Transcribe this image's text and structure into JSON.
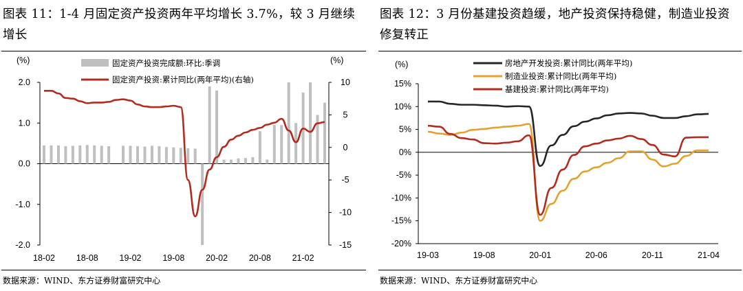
{
  "left": {
    "title": "图表 11：1-4 月固定资产投资两年平均增长 3.7%，较 3 月继续增长",
    "source": "数据来源：WIND、东方证券财富研究中心",
    "chart_data": {
      "type": "bar+line",
      "y_left": {
        "unit": "(%)",
        "range": [
          -2.0,
          2.0
        ],
        "ticks": [
          "2.0",
          "1.0",
          "0.0",
          "-1.0",
          "-2.0"
        ]
      },
      "y_right": {
        "unit": "(%)",
        "range": [
          -15,
          10
        ],
        "ticks": [
          "10",
          "5",
          "0",
          "-5",
          "-10",
          "-15"
        ]
      },
      "x_ticks": [
        "18-02",
        "18-08",
        "19-02",
        "19-08",
        "20-02",
        "20-08",
        "21-02"
      ],
      "legend": [
        "固定资产投资完成额:环比:季调",
        "固定资产投资:累计同比(两年平均)(右轴)"
      ],
      "bar_series": {
        "name": "固定资产投资完成额:环比:季调",
        "color": "#bfbfbf",
        "x": [
          0,
          1,
          2,
          3,
          4,
          5,
          6,
          7,
          8,
          9,
          10,
          11,
          12,
          13,
          14,
          15,
          16,
          17,
          18,
          19,
          20,
          21,
          22,
          23,
          24,
          25,
          26,
          27,
          28,
          29,
          30,
          31,
          32,
          33,
          34,
          35,
          36,
          37,
          38,
          39
        ],
        "values": [
          0.45,
          0.45,
          0.45,
          0.43,
          0.44,
          0.45,
          0.46,
          0.45,
          0.44,
          0.43,
          null,
          0.44,
          0.44,
          0.43,
          0.42,
          0.44,
          0.43,
          0.41,
          0.4,
          0.39,
          0.38,
          0.37,
          -2.0,
          1.9,
          1.8,
          0.1,
          0.1,
          0.13,
          0.14,
          0.16,
          0.8,
          0.1,
          0.95,
          0.95,
          2.0,
          1.0,
          1.75,
          2.0,
          1.2,
          1.5
        ]
      },
      "line_series": {
        "name": "固定资产投资:累计同比(两年平均)(右轴)",
        "color": "#b22b1e",
        "x": [
          0,
          1,
          2,
          3,
          4,
          5,
          6,
          7,
          8,
          9,
          10,
          11,
          12,
          13,
          14,
          15,
          16,
          17,
          18,
          19,
          20,
          21,
          22,
          23,
          24,
          25,
          26,
          27,
          28,
          29,
          30,
          31,
          32,
          33,
          34,
          35,
          36,
          37,
          38,
          39
        ],
        "values": [
          8.7,
          8.7,
          8.3,
          7.6,
          7.5,
          7.1,
          6.8,
          6.9,
          6.9,
          7.0,
          7.3,
          7.4,
          7.2,
          6.6,
          6.3,
          6.2,
          6.2,
          6.3,
          6.4,
          6.2,
          -5.0,
          -10.6,
          -6.5,
          -3.4,
          -1.5,
          0.1,
          1.2,
          1.8,
          2.3,
          2.7,
          3.0,
          3.5,
          3.8,
          4.4,
          2.6,
          0.8,
          2.9,
          2.4,
          3.7,
          3.9
        ]
      }
    }
  },
  "right": {
    "title": "图表 12：3 月份基建投资趋缓，地产投资保持稳健，制造业投资修复转正",
    "source": "数据来源：WIND、东方证券财富研究中心",
    "chart_data": {
      "type": "line",
      "y": {
        "unit": "(%)",
        "range": [
          -20,
          15
        ],
        "ticks": [
          "15%",
          "10%",
          "5%",
          "0%",
          "-5%",
          "-10%",
          "-15%",
          "-20%"
        ]
      },
      "x_ticks": [
        "19-03",
        "19-08",
        "20-01",
        "20-06",
        "20-11",
        "21-04"
      ],
      "series": [
        {
          "name": "房地产开发投资:累计同比(两年平均)",
          "color": "#262626",
          "x": [
            0,
            1,
            2,
            3,
            4,
            5,
            6,
            7,
            8,
            9,
            10,
            11,
            12,
            13,
            14,
            15,
            16,
            17,
            18,
            19,
            20,
            21,
            22,
            23,
            24,
            25
          ],
          "values": [
            11.1,
            11.1,
            10.6,
            10.4,
            10.4,
            10.3,
            10.2,
            10.0,
            10.1,
            10.0,
            -3.0,
            1.5,
            3.8,
            5.7,
            6.7,
            7.4,
            8.1,
            8.5,
            8.6,
            8.5,
            8.0,
            7.5,
            7.5,
            7.9,
            8.3,
            8.4
          ]
        },
        {
          "name": "制造业投资:累计同比(两年平均)",
          "color": "#e6a02d",
          "x": [
            0,
            1,
            2,
            3,
            4,
            5,
            6,
            7,
            8,
            9,
            10,
            11,
            12,
            13,
            14,
            15,
            16,
            17,
            18,
            19,
            20,
            21,
            22,
            23,
            24,
            25
          ],
          "values": [
            4.5,
            4.1,
            3.8,
            4.3,
            4.9,
            5.1,
            5.4,
            5.6,
            5.8,
            6.2,
            -15.0,
            -11.3,
            -8.4,
            -5.8,
            -4.2,
            -3.3,
            -2.3,
            -1.3,
            0.2,
            0.2,
            -1.6,
            -3.1,
            -2.5,
            -0.8,
            0.4,
            0.4
          ]
        },
        {
          "name": "基建投资:累计同比(两年平均)",
          "color": "#b22b1e",
          "x": [
            0,
            1,
            2,
            3,
            4,
            5,
            6,
            7,
            8,
            9,
            10,
            11,
            12,
            13,
            14,
            15,
            16,
            17,
            18,
            19,
            20,
            21,
            22,
            23,
            24,
            25
          ],
          "values": [
            5.8,
            5.6,
            4.0,
            3.1,
            2.8,
            2.0,
            1.9,
            2.1,
            2.4,
            3.7,
            -13.7,
            -7.8,
            -3.8,
            -0.6,
            1.3,
            1.9,
            2.6,
            3.0,
            3.6,
            2.9,
            1.6,
            -0.5,
            -0.9,
            3.2,
            3.3,
            3.3
          ]
        }
      ]
    }
  }
}
